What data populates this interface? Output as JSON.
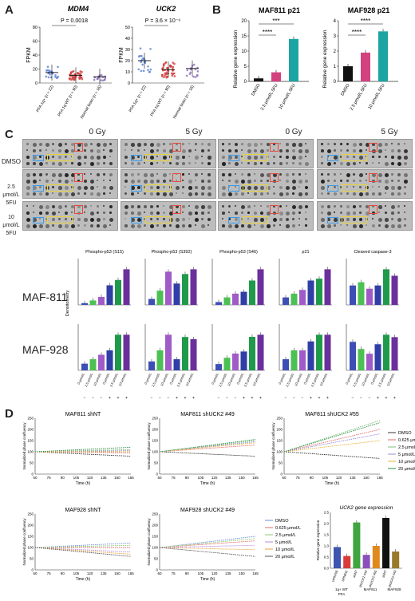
{
  "panel_letters": {
    "a": "A",
    "b": "B",
    "c": "C",
    "d": "D"
  },
  "panel_a": {
    "mdm4": {
      "title": "MDM4",
      "pvalue": "P = 0.0018",
      "ylabel": "FPKM",
      "yticks": [
        "0",
        "20",
        "40",
        "60",
        "80"
      ],
      "groups": [
        "PFA 1q+ (n = 22)",
        "PFA 1q WT (n = 90)",
        "Normal brain (n = 16)"
      ]
    },
    "uck2": {
      "title": "UCK2",
      "pvalue": "P = 3.6 × 10⁻⁶",
      "ylabel": "FPKM",
      "yticks": [
        "0",
        "10",
        "20",
        "30",
        "40",
        "50"
      ],
      "groups": [
        "PFA 1q+ (n = 22)",
        "PFA 1q WT (n = 90)",
        "Normal brain (n = 16)"
      ]
    }
  },
  "panel_b": {
    "maf811": {
      "title": "MAF811 p21",
      "ylabel": "Relative gene expression",
      "yticks": [
        "0",
        "5",
        "10",
        "15",
        "20"
      ],
      "categories": [
        "DMSO",
        "2.5 μmol/L 5FU",
        "10 μmol/L 5FU"
      ],
      "values": [
        1,
        3,
        14
      ],
      "sig": [
        "****",
        "***"
      ]
    },
    "maf928": {
      "title": "MAF928 p21",
      "ylabel": "Relative gene expression",
      "yticks": [
        "0",
        "1",
        "2",
        "3",
        "4"
      ],
      "categories": [
        "DMSO",
        "2.5 μmol/L 5FU",
        "10 μmol/L 5FU"
      ],
      "values": [
        1,
        1.9,
        3.3
      ],
      "sig": [
        "****",
        "****"
      ]
    }
  },
  "panel_c": {
    "dose_labels": [
      "0 Gy",
      "5 Gy",
      "0 Gy",
      "5 Gy"
    ],
    "row_labels": [
      "DMSO",
      "2.5 μmol/L 5FU",
      "10 μmol/L 5FU"
    ],
    "proteins": [
      "Phospho-p53 (S15)",
      "Phospho-p53 (S392)",
      "Phospho-p53 (S46)",
      "p21",
      "Cleaved caspase-3"
    ],
    "cell_lines": [
      "MAF-811",
      "MAF-928"
    ],
    "ylabel": "Densitometry",
    "x_categories": [
      "0 μmol/L",
      "2.5 μmol/L",
      "10 μmol/L",
      "0 μmol/L",
      "2.5 μmol/L",
      "10 μmol/L"
    ],
    "gy_label": "5 Gy",
    "gy_signs": [
      "−",
      "−",
      "−",
      "+",
      "+",
      "+"
    ],
    "colors": [
      "#3d4fb5",
      "#4cc052",
      "#a05bc8",
      "#2f3fa6",
      "#1f9a4a",
      "#6b2f9c"
    ]
  },
  "panel_d": {
    "top_titles": [
      "MAF811 shNT",
      "MAF811 shUCK2 #49",
      "MAF811 shUCK2 #55"
    ],
    "bottom_titles": [
      "MAF928 shNT",
      "MAF928 shUCK2 #49"
    ],
    "ylabel": "Normalized phase confluency",
    "xlabel": "Time (h)",
    "xticks": [
      "60",
      "75",
      "90",
      "105",
      "120",
      "135",
      "150",
      "165"
    ],
    "yticks": [
      "0",
      "50",
      "100",
      "150",
      "200",
      "250"
    ],
    "legend": [
      "DMSO",
      "0.625 μmol/L",
      "2.5 μmol/L",
      "5 μmol/L",
      "10 μmol/L",
      "20 μmol/L"
    ],
    "legend_colors": [
      "#333333",
      "#e06a6a",
      "#7ac27a",
      "#9a8bd6",
      "#e8b23a",
      "#2d8a3e"
    ],
    "legend_colors_b": [
      "#6a8fd6",
      "#e06a6a",
      "#8fc96b",
      "#b48ad8",
      "#e8a23a",
      "#555555"
    ],
    "expression": {
      "title": "UCK2 gene expression",
      "ylabel": "Relative gene expression",
      "yticks": [
        "0.0",
        "0.5",
        "1.0",
        "1.5",
        "2.0",
        "2.5"
      ],
      "categories": [
        "UPN766",
        "UPN811",
        "shNT",
        "shUCK2 #49",
        "shUCK2 #55",
        "shNT",
        "shUCK2 #49"
      ],
      "values": [
        0.95,
        0.55,
        2.05,
        0.6,
        1.0,
        2.25,
        0.75
      ],
      "colors": [
        "#3d55b0",
        "#d93b3b",
        "#3fa53f",
        "#8a4fb8",
        "#e08a1e",
        "#111111",
        "#9a7a2a"
      ],
      "groups": [
        "1q+ WT\nPFA",
        "MAF811",
        "MAF928"
      ]
    }
  },
  "chart_data": [
    {
      "type": "bar",
      "title": "MAF811 p21",
      "categories": [
        "DMSO",
        "2.5 μmol/L 5FU",
        "10 μmol/L 5FU"
      ],
      "values": [
        1,
        3,
        14
      ],
      "ylabel": "Relative gene expression",
      "ylim": [
        0,
        20
      ]
    },
    {
      "type": "bar",
      "title": "MAF928 p21",
      "categories": [
        "DMSO",
        "2.5 μmol/L 5FU",
        "10 μmol/L 5FU"
      ],
      "values": [
        1,
        1.9,
        3.3
      ],
      "ylabel": "Relative gene expression",
      "ylim": [
        0,
        4
      ]
    },
    {
      "type": "bar",
      "title": "UCK2 gene expression",
      "categories": [
        "UPN766",
        "UPN811",
        "shNT",
        "shUCK2 #49",
        "shUCK2 #55",
        "shNT",
        "shUCK2 #49"
      ],
      "values": [
        0.95,
        0.55,
        2.05,
        0.6,
        1.0,
        2.25,
        0.75
      ],
      "ylabel": "Relative gene expression",
      "ylim": [
        0,
        2.5
      ]
    },
    {
      "type": "bar",
      "title": "MAF-811 densitometry",
      "series": [
        {
          "name": "Phospho-p53 (S15)",
          "values": [
            2,
            5,
            9,
            22,
            28,
            40
          ]
        },
        {
          "name": "Phospho-p53 (S392)",
          "values": [
            5,
            12,
            28,
            18,
            26,
            30
          ]
        },
        {
          "name": "Phospho-p53 (S46)",
          "values": [
            3,
            8,
            12,
            14,
            26,
            38
          ]
        },
        {
          "name": "p21",
          "values": [
            8,
            12,
            16,
            26,
            28,
            38
          ]
        },
        {
          "name": "Cleaved caspase-3",
          "values": [
            12,
            14,
            10,
            12,
            22,
            18
          ]
        }
      ],
      "categories": [
        "0 μmol/L",
        "2.5 μmol/L",
        "10 μmol/L",
        "0 μmol/L",
        "2.5 μmol/L",
        "10 μmol/L"
      ]
    },
    {
      "type": "bar",
      "title": "MAF-928 densitometry",
      "series": [
        {
          "name": "Phospho-p53 (S15)",
          "values": [
            3,
            5,
            7,
            9,
            16,
            16
          ]
        },
        {
          "name": "Phospho-p53 (S392)",
          "values": [
            4,
            9,
            16,
            5,
            15,
            14
          ]
        },
        {
          "name": "Phospho-p53 (S46)",
          "values": [
            3,
            6,
            8,
            9,
            16,
            17
          ]
        },
        {
          "name": "p21",
          "values": [
            5,
            9,
            9,
            13,
            16,
            16
          ]
        },
        {
          "name": "Cleaved caspase-3",
          "values": [
            12,
            9,
            7,
            11,
            15,
            14
          ]
        }
      ],
      "categories": [
        "0 μmol/L",
        "2.5 μmol/L",
        "10 μmol/L",
        "0 μmol/L",
        "2.5 μmol/L",
        "10 μmol/L"
      ]
    }
  ]
}
